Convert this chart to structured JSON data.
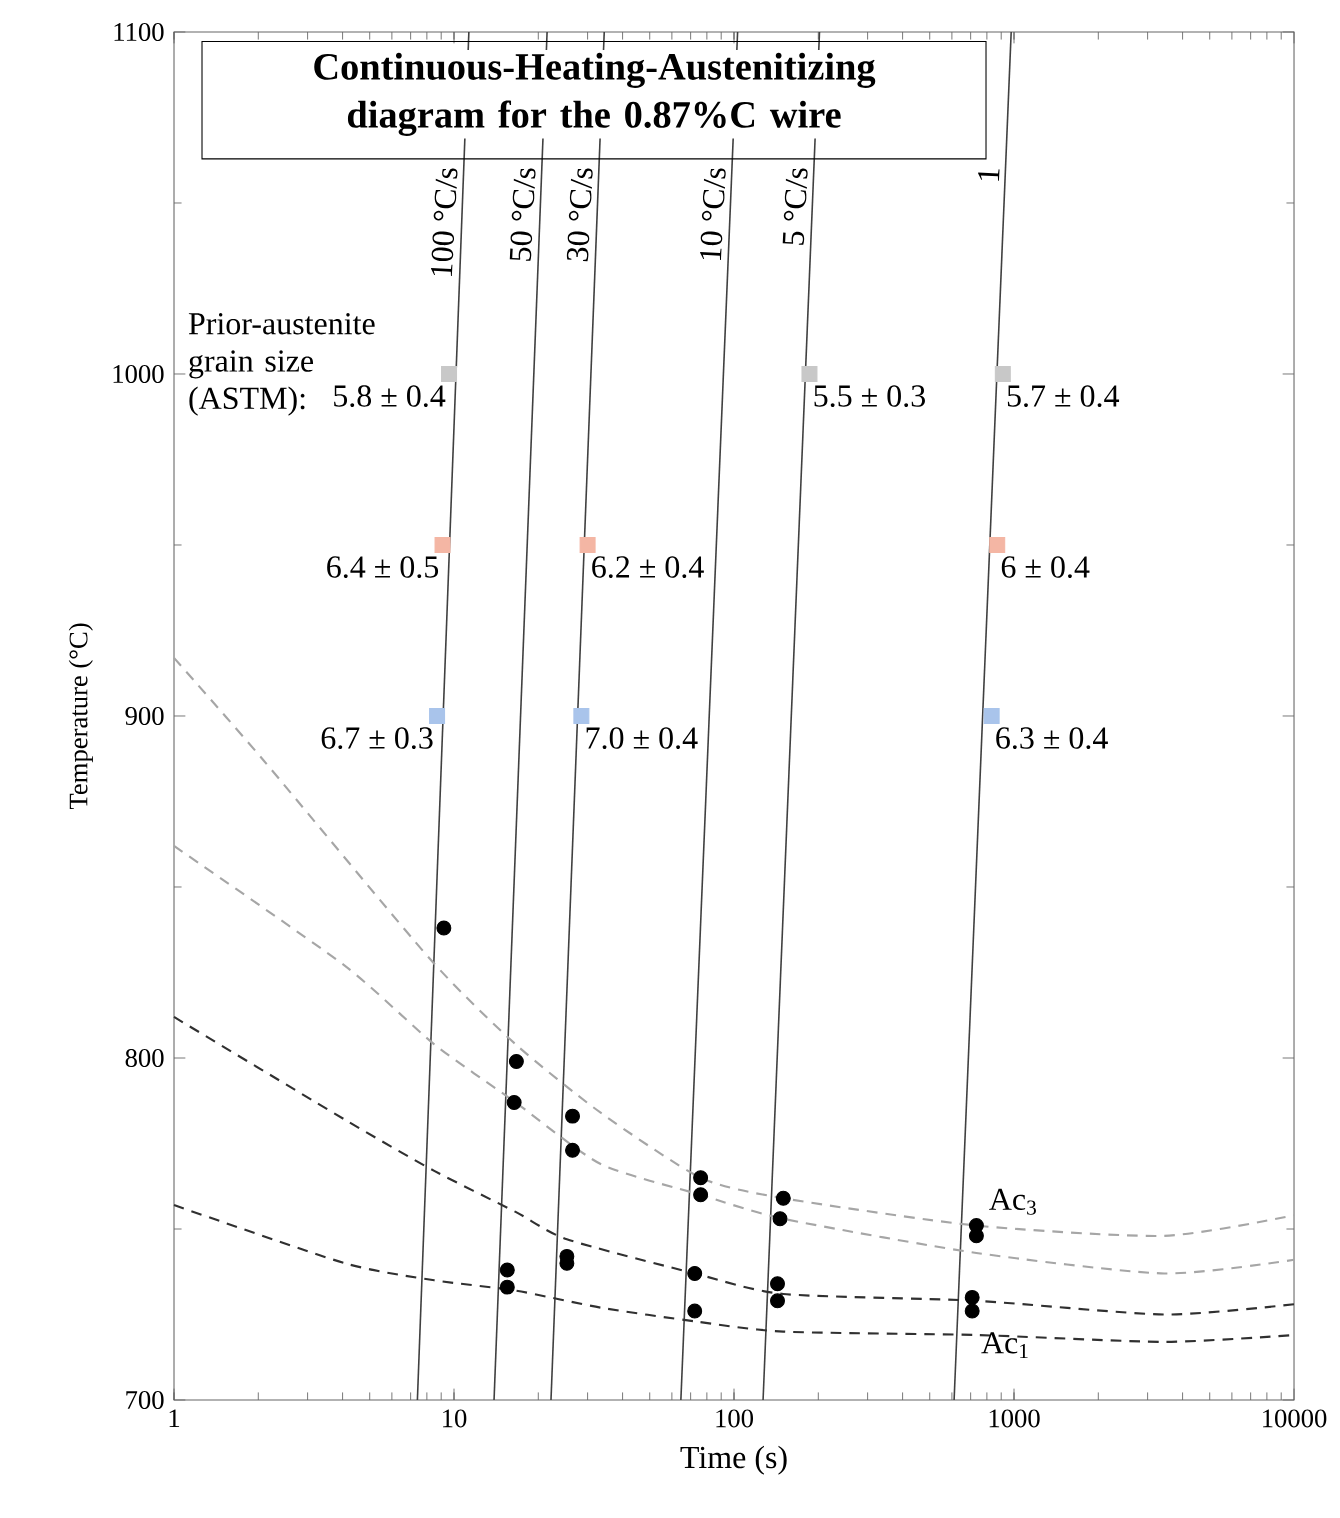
{
  "chart_data": {
    "type": "line",
    "title": "Continuous-Heating-Austenitizing diagram for the 0.87%C wire",
    "xlabel": "Time (s)",
    "ylabel": "Temperature (°C)",
    "log": "x",
    "xlim": [
      1,
      10000
    ],
    "ylim": [
      700,
      1100
    ],
    "xticks": [
      1,
      10,
      100,
      1000,
      10000
    ],
    "yticks": [
      700,
      800,
      900,
      1000,
      1100
    ],
    "grid": false,
    "series": [
      {
        "name": "100 °C/s",
        "color": "#404040",
        "line_style": "solid",
        "x": [
          7.4,
          11.3
        ],
        "values": [
          700,
          1100
        ]
      },
      {
        "name": "50 °C/s",
        "color": "#404040",
        "line_style": "solid",
        "x": [
          13.9,
          21.5
        ],
        "values": [
          700,
          1100
        ]
      },
      {
        "name": "30 °C/s",
        "color": "#404040",
        "line_style": "solid",
        "x": [
          22.2,
          34.4
        ],
        "values": [
          700,
          1100
        ]
      },
      {
        "name": "10 °C/s",
        "color": "#404040",
        "line_style": "solid",
        "x": [
          64.6,
          103
        ],
        "values": [
          700,
          1100
        ]
      },
      {
        "name": "5 °C/s",
        "color": "#404040",
        "line_style": "solid",
        "x": [
          127,
          202
        ],
        "values": [
          700,
          1100
        ]
      },
      {
        "name": "1",
        "color": "#404040",
        "line_style": "solid",
        "x": [
          611,
          977
        ],
        "values": [
          700,
          1100
        ]
      },
      {
        "type": "line",
        "color": "#a6a6a6",
        "line_style": "dashed",
        "x": [
          1,
          2.09,
          8.2,
          16.6,
          33.4,
          76,
          150,
          734,
          3440,
          10000
        ],
        "values": [
          917,
          887,
          829,
          804,
          784,
          765,
          759,
          751,
          748,
          754
        ]
      },
      {
        "type": "line",
        "color": "#a6a6a6",
        "line_style": "dashed",
        "x": [
          1,
          4.07,
          8.5,
          16.6,
          33.4,
          76,
          150,
          734,
          3440,
          10000
        ],
        "values": [
          862,
          827,
          804,
          787,
          769,
          760,
          753,
          743,
          737,
          741
        ]
      },
      {
        "type": "line",
        "color": "#303030",
        "line_style": "dashed",
        "x": [
          1,
          4.07,
          8.5,
          16.6,
          25.3,
          72.4,
          150,
          734,
          3440,
          10000
        ],
        "values": [
          812,
          782,
          767,
          755,
          747,
          737,
          731,
          729,
          725,
          728
        ]
      },
      {
        "type": "line",
        "color": "#303030",
        "line_style": "dashed",
        "x": [
          1,
          4.07,
          8.5,
          16.6,
          33.4,
          72.4,
          150,
          734,
          3440,
          10000
        ],
        "values": [
          757,
          740,
          735,
          732,
          727,
          723,
          720,
          719,
          717,
          719
        ]
      },
      {
        "type": "scatter",
        "color": "#000000",
        "marker": "circle",
        "x": [
          9.2,
          16.7,
          16.4,
          15.5,
          15.5,
          26.5,
          26.5,
          25.3,
          25.3,
          76,
          76,
          72.4,
          72.4,
          150,
          146,
          143,
          143,
          734,
          734,
          709,
          709
        ],
        "values": [
          838,
          799,
          787,
          738,
          733,
          783,
          773,
          742,
          740,
          765,
          760,
          737,
          726,
          759,
          753,
          734,
          729,
          751,
          748,
          730,
          726
        ]
      },
      {
        "type": "scatter",
        "color": "#c8c8c8",
        "marker": "square",
        "x": [
          9.6,
          186,
          912
        ],
        "values": [
          1000,
          1000,
          1000
        ]
      },
      {
        "type": "scatter",
        "color": "#f4b6a4",
        "marker": "square",
        "x": [
          9.1,
          30,
          871
        ],
        "values": [
          950,
          950,
          950
        ]
      },
      {
        "type": "scatter",
        "color": "#a9c4eb",
        "marker": "square",
        "x": [
          8.7,
          28.5,
          832
        ],
        "values": [
          900,
          900,
          900
        ]
      }
    ],
    "annotations": [
      "Prior-austenite grain size (ASTM):",
      {
        "text": "5.8 ± 0.4",
        "x": 9.6,
        "y": 1000
      },
      {
        "text": "5.5 ± 0.3",
        "x": 186,
        "y": 1000
      },
      {
        "text": "5.7 ± 0.4",
        "x": 912,
        "y": 1000
      },
      {
        "text": "6.4 ± 0.5",
        "x": 9.1,
        "y": 950
      },
      {
        "text": "6.2 ± 0.4",
        "x": 30,
        "y": 950
      },
      {
        "text": "6 ± 0.4",
        "x": 871,
        "y": 950
      },
      {
        "text": "6.7 ± 0.3",
        "x": 8.7,
        "y": 900
      },
      {
        "text": "7.0 ± 0.4",
        "x": 28.5,
        "y": 900
      },
      {
        "text": "6.3 ± 0.4",
        "x": 832,
        "y": 900
      },
      "Ac$_{3}$",
      "Ac$_{1}$"
    ]
  }
}
